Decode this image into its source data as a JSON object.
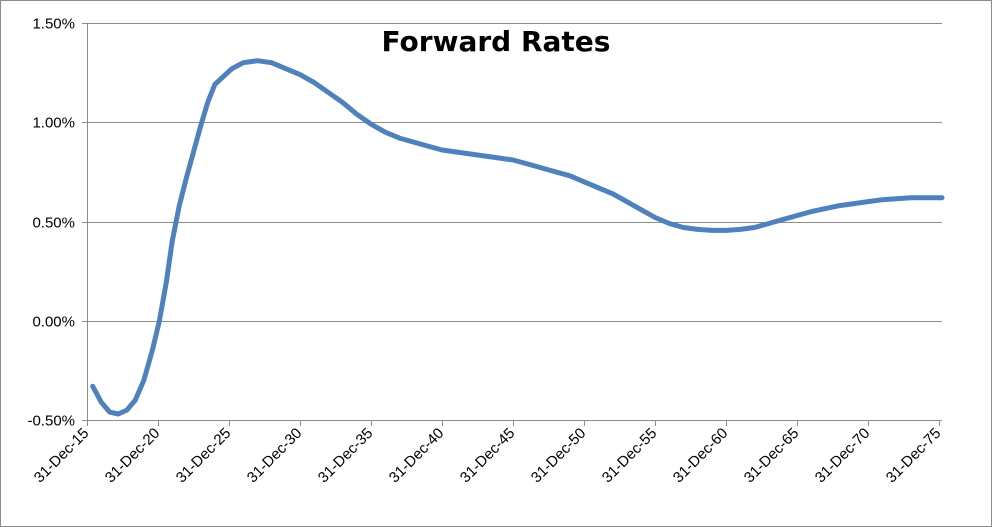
{
  "chart_data": {
    "type": "line",
    "title": "Forward Rates",
    "xlabel": "",
    "ylabel": "",
    "x_tick_labels": [
      "31-Dec-15",
      "31-Dec-20",
      "31-Dec-25",
      "31-Dec-30",
      "31-Dec-35",
      "31-Dec-40",
      "31-Dec-45",
      "31-Dec-50",
      "31-Dec-55",
      "31-Dec-60",
      "31-Dec-65",
      "31-Dec-70",
      "31-Dec-75"
    ],
    "x_tick_years": [
      2015,
      2020,
      2025,
      2030,
      2035,
      2040,
      2045,
      2050,
      2055,
      2060,
      2065,
      2070,
      2075
    ],
    "y_tick_labels": [
      "-0.50%",
      "0.00%",
      "0.50%",
      "1.00%",
      "1.50%"
    ],
    "y_tick_values": [
      -0.5,
      0.0,
      0.5,
      1.0,
      1.5
    ],
    "xlim": [
      2015,
      2075.2
    ],
    "ylim": [
      -0.5,
      1.5
    ],
    "grid": true,
    "legend": "none",
    "series_color": "#4F81BD",
    "series": [
      {
        "points": [
          [
            2015.4,
            -0.33
          ],
          [
            2016.0,
            -0.41
          ],
          [
            2016.6,
            -0.46
          ],
          [
            2017.2,
            -0.47
          ],
          [
            2017.8,
            -0.45
          ],
          [
            2018.4,
            -0.4
          ],
          [
            2019.0,
            -0.3
          ],
          [
            2019.6,
            -0.15
          ],
          [
            2020.1,
            0.0
          ],
          [
            2020.6,
            0.2
          ],
          [
            2021.0,
            0.4
          ],
          [
            2021.5,
            0.58
          ],
          [
            2022.0,
            0.72
          ],
          [
            2022.5,
            0.85
          ],
          [
            2023.0,
            0.98
          ],
          [
            2023.5,
            1.1
          ],
          [
            2024.0,
            1.19
          ],
          [
            2024.6,
            1.23
          ],
          [
            2025.2,
            1.27
          ],
          [
            2026.0,
            1.3
          ],
          [
            2027.0,
            1.31
          ],
          [
            2028.0,
            1.3
          ],
          [
            2029.0,
            1.27
          ],
          [
            2030.0,
            1.24
          ],
          [
            2031.0,
            1.2
          ],
          [
            2032.0,
            1.15
          ],
          [
            2033.0,
            1.1
          ],
          [
            2034.0,
            1.04
          ],
          [
            2035.0,
            0.99
          ],
          [
            2036.0,
            0.95
          ],
          [
            2037.0,
            0.92
          ],
          [
            2038.0,
            0.9
          ],
          [
            2039.0,
            0.88
          ],
          [
            2040.0,
            0.86
          ],
          [
            2041.0,
            0.85
          ],
          [
            2042.0,
            0.84
          ],
          [
            2043.0,
            0.83
          ],
          [
            2044.0,
            0.82
          ],
          [
            2045.0,
            0.81
          ],
          [
            2046.0,
            0.79
          ],
          [
            2047.0,
            0.77
          ],
          [
            2048.0,
            0.75
          ],
          [
            2049.0,
            0.73
          ],
          [
            2050.0,
            0.7
          ],
          [
            2051.0,
            0.67
          ],
          [
            2052.0,
            0.64
          ],
          [
            2053.0,
            0.6
          ],
          [
            2054.0,
            0.56
          ],
          [
            2055.0,
            0.52
          ],
          [
            2056.0,
            0.49
          ],
          [
            2057.0,
            0.47
          ],
          [
            2058.0,
            0.46
          ],
          [
            2059.0,
            0.455
          ],
          [
            2060.0,
            0.455
          ],
          [
            2061.0,
            0.46
          ],
          [
            2062.0,
            0.47
          ],
          [
            2063.0,
            0.49
          ],
          [
            2064.0,
            0.51
          ],
          [
            2065.0,
            0.53
          ],
          [
            2066.0,
            0.55
          ],
          [
            2067.0,
            0.565
          ],
          [
            2068.0,
            0.58
          ],
          [
            2069.0,
            0.59
          ],
          [
            2070.0,
            0.6
          ],
          [
            2071.0,
            0.61
          ],
          [
            2072.0,
            0.615
          ],
          [
            2073.0,
            0.62
          ],
          [
            2074.0,
            0.62
          ],
          [
            2075.2,
            0.62
          ]
        ]
      }
    ]
  }
}
